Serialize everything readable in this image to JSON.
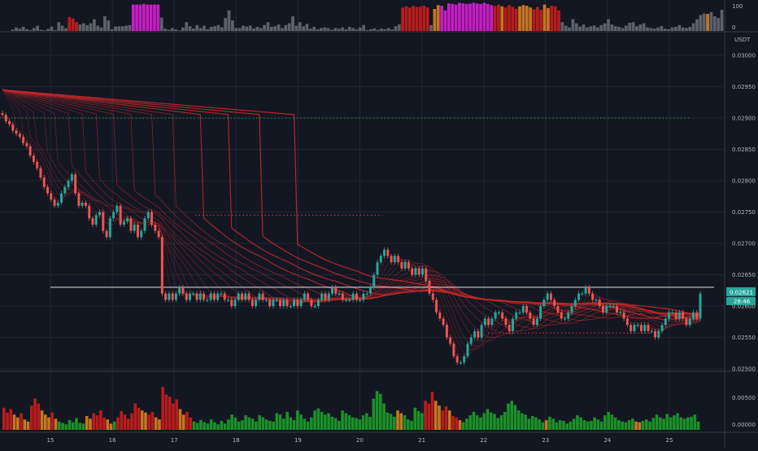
{
  "chart_data": [
    {
      "type": "bar",
      "ylim": [
        0,
        100
      ],
      "y_tick_labels": [
        "100",
        "0"
      ],
      "colors": {
        "grey": "#5d606b",
        "red": "#b71c1c",
        "magenta": "#c41ec4",
        "orange": "#c7751f"
      },
      "values": [
        0,
        0,
        5,
        12,
        8,
        14,
        6,
        3,
        10,
        18,
        4,
        2,
        7,
        15,
        3,
        30,
        18,
        9,
        48,
        42,
        30,
        22,
        26,
        20,
        26,
        40,
        18,
        12,
        50,
        36,
        6,
        15,
        16,
        16,
        18,
        20,
        90,
        90,
        90,
        92,
        90,
        90,
        90,
        90,
        45,
        8,
        4,
        10,
        5,
        2,
        12,
        30,
        16,
        8,
        20,
        10,
        18,
        6,
        14,
        16,
        20,
        12,
        44,
        70,
        36,
        10,
        10,
        18,
        15,
        18,
        8,
        14,
        10,
        20,
        30,
        14,
        16,
        22,
        10,
        20,
        26,
        50,
        18,
        30,
        16,
        24,
        8,
        14,
        6,
        10,
        12,
        10,
        4,
        10,
        8,
        12,
        6,
        14,
        10,
        6,
        12,
        20,
        3,
        6,
        9,
        4,
        8,
        6,
        10,
        5,
        16,
        22,
        80,
        84,
        80,
        85,
        82,
        83,
        86,
        80,
        20,
        75,
        88,
        86,
        70,
        94,
        92,
        90,
        96,
        94,
        92,
        93,
        96,
        94,
        92,
        96,
        92,
        88,
        85,
        90,
        84,
        80,
        88,
        82,
        76,
        84,
        88,
        86,
        80,
        74,
        82,
        72,
        90,
        78,
        86,
        84,
        70,
        30,
        18,
        12,
        40,
        26,
        15,
        22,
        12,
        16,
        18,
        12,
        20,
        26,
        40,
        22,
        16,
        14,
        10,
        18,
        28,
        30,
        16,
        22,
        26,
        12,
        10,
        8,
        12,
        16,
        8,
        6,
        12,
        14,
        20,
        12,
        10,
        14,
        26,
        40,
        54,
        60,
        58,
        64,
        50,
        44,
        72
      ],
      "bar_colors": [
        "g",
        "g",
        "g",
        "g",
        "g",
        "g",
        "g",
        "g",
        "g",
        "g",
        "g",
        "g",
        "g",
        "g",
        "g",
        "g",
        "g",
        "g",
        "r",
        "r",
        "r",
        "g",
        "g",
        "g",
        "g",
        "g",
        "g",
        "g",
        "g",
        "g",
        "g",
        "g",
        "g",
        "g",
        "g",
        "g",
        "m",
        "m",
        "m",
        "m",
        "m",
        "m",
        "m",
        "m",
        "g",
        "g",
        "g",
        "g",
        "g",
        "g",
        "g",
        "g",
        "g",
        "g",
        "g",
        "g",
        "g",
        "g",
        "g",
        "g",
        "g",
        "g",
        "g",
        "g",
        "g",
        "g",
        "g",
        "g",
        "g",
        "g",
        "g",
        "g",
        "g",
        "g",
        "g",
        "g",
        "g",
        "g",
        "g",
        "g",
        "g",
        "g",
        "g",
        "g",
        "g",
        "g",
        "g",
        "g",
        "g",
        "g",
        "g",
        "g",
        "g",
        "g",
        "g",
        "g",
        "g",
        "g",
        "g",
        "g",
        "g",
        "g",
        "g",
        "g",
        "g",
        "g",
        "g",
        "g",
        "g",
        "g",
        "g",
        "g",
        "r",
        "r",
        "r",
        "r",
        "r",
        "r",
        "r",
        "r",
        "g",
        "o",
        "o",
        "m",
        "m",
        "m",
        "m",
        "m",
        "m",
        "m",
        "m",
        "m",
        "m",
        "m",
        "m",
        "m",
        "m",
        "m",
        "r",
        "r",
        "o",
        "r",
        "r",
        "r",
        "r",
        "o",
        "o",
        "o",
        "o",
        "r",
        "r",
        "r",
        "o",
        "o",
        "r",
        "r",
        "r",
        "g",
        "g",
        "g",
        "g",
        "g",
        "g",
        "g",
        "g",
        "g",
        "g",
        "g",
        "g",
        "g",
        "g",
        "g",
        "g",
        "g",
        "g",
        "g",
        "g",
        "g",
        "g",
        "g",
        "g",
        "g",
        "g",
        "g",
        "g",
        "g",
        "g",
        "g",
        "g",
        "g",
        "g",
        "g",
        "g",
        "g",
        "g",
        "g",
        "g",
        "g",
        "o"
      ]
    },
    {
      "type": "candlestick",
      "unit": "USDT",
      "x_tick_labels": [
        "15",
        "16",
        "17",
        "18",
        "19",
        "20",
        "21",
        "22",
        "23",
        "24",
        "25"
      ],
      "y_tick_labels": [
        "0.03000",
        "0.02950",
        "0.02900",
        "0.02850",
        "0.02800",
        "0.02750",
        "0.02700",
        "0.02650",
        "0.02600",
        "0.02550",
        "0.02500"
      ],
      "last_price_label": "0.02621",
      "countdown_label": "28:46",
      "horizontal_level": 0.0263,
      "dotted_level_green": 0.029,
      "dotted_level_red": 0.02745,
      "dotted_level_red_2": 0.02557,
      "close": [
        0.02905,
        0.02895,
        0.0289,
        0.0288,
        0.02875,
        0.0287,
        0.0286,
        0.02855,
        0.0284,
        0.0283,
        0.0282,
        0.02805,
        0.0279,
        0.0278,
        0.0277,
        0.0276,
        0.02765,
        0.0278,
        0.0279,
        0.028,
        0.0281,
        0.0278,
        0.0276,
        0.02765,
        0.0276,
        0.0274,
        0.0273,
        0.02745,
        0.0275,
        0.0272,
        0.0271,
        0.0274,
        0.0275,
        0.0276,
        0.0273,
        0.02735,
        0.0274,
        0.0272,
        0.0273,
        0.0271,
        0.0272,
        0.0274,
        0.0275,
        0.0273,
        0.0272,
        0.0271,
        0.0262,
        0.0261,
        0.0262,
        0.0261,
        0.0262,
        0.0263,
        0.0262,
        0.0261,
        0.0262,
        0.0262,
        0.0261,
        0.0262,
        0.0261,
        0.0261,
        0.0262,
        0.0261,
        0.0262,
        0.0262,
        0.0261,
        0.0261,
        0.026,
        0.0261,
        0.0262,
        0.0261,
        0.0262,
        0.0261,
        0.026,
        0.0261,
        0.0262,
        0.0261,
        0.0261,
        0.026,
        0.0261,
        0.0261,
        0.026,
        0.0261,
        0.026,
        0.026,
        0.0261,
        0.026,
        0.0261,
        0.0262,
        0.0261,
        0.026,
        0.026,
        0.0261,
        0.0262,
        0.0261,
        0.0262,
        0.0263,
        0.0262,
        0.0262,
        0.0261,
        0.0261,
        0.0261,
        0.0262,
        0.0261,
        0.0261,
        0.0262,
        0.0262,
        0.0263,
        0.0265,
        0.0267,
        0.0268,
        0.0269,
        0.0268,
        0.0267,
        0.0268,
        0.0267,
        0.0266,
        0.0267,
        0.0266,
        0.0265,
        0.0266,
        0.0265,
        0.0266,
        0.0264,
        0.0262,
        0.0261,
        0.0259,
        0.0258,
        0.0257,
        0.0255,
        0.0254,
        0.0252,
        0.0251,
        0.0251,
        0.0252,
        0.0254,
        0.0255,
        0.0256,
        0.0255,
        0.0257,
        0.0258,
        0.0257,
        0.0258,
        0.0259,
        0.0259,
        0.0258,
        0.0257,
        0.0256,
        0.0258,
        0.0259,
        0.0259,
        0.026,
        0.0259,
        0.0258,
        0.0257,
        0.0258,
        0.026,
        0.0261,
        0.0262,
        0.0261,
        0.026,
        0.0259,
        0.0258,
        0.0258,
        0.0259,
        0.026,
        0.0261,
        0.0262,
        0.0262,
        0.0263,
        0.0262,
        0.0261,
        0.0261,
        0.026,
        0.0259,
        0.026,
        0.026,
        0.026,
        0.0259,
        0.0259,
        0.0258,
        0.0257,
        0.0256,
        0.0257,
        0.0257,
        0.0256,
        0.0257,
        0.0256,
        0.0256,
        0.0255,
        0.0256,
        0.0257,
        0.0258,
        0.0259,
        0.0259,
        0.0258,
        0.0259,
        0.0258,
        0.0257,
        0.0258,
        0.0259,
        0.0258,
        0.0262
      ]
    },
    {
      "type": "bar",
      "y_tick_labels": [
        "0.00500",
        "0.00000"
      ],
      "ylim": [
        0,
        0.008
      ],
      "values": [
        0.0032,
        0.0025,
        0.003,
        0.0022,
        0.0018,
        0.0024,
        0.0015,
        0.0012,
        0.0035,
        0.0045,
        0.0038,
        0.0028,
        0.0022,
        0.0018,
        0.0025,
        0.0016,
        0.0012,
        0.001,
        0.0008,
        0.0014,
        0.0011,
        0.0017,
        0.001,
        0.0009,
        0.002,
        0.0016,
        0.0024,
        0.0021,
        0.0028,
        0.0018,
        0.0015,
        0.0009,
        0.0012,
        0.0018,
        0.0027,
        0.0022,
        0.0016,
        0.0024,
        0.0038,
        0.0032,
        0.0028,
        0.0025,
        0.0022,
        0.0026,
        0.0018,
        0.0015,
        0.0062,
        0.0051,
        0.0048,
        0.0038,
        0.0044,
        0.003,
        0.0022,
        0.0026,
        0.0018,
        0.0012,
        0.001,
        0.0014,
        0.0011,
        0.0009,
        0.0015,
        0.0011,
        0.0008,
        0.0013,
        0.0009,
        0.0015,
        0.0022,
        0.0018,
        0.0012,
        0.0014,
        0.0021,
        0.0018,
        0.0016,
        0.0012,
        0.0021,
        0.0018,
        0.0015,
        0.0013,
        0.0012,
        0.0024,
        0.0022,
        0.0016,
        0.0026,
        0.0018,
        0.0014,
        0.0028,
        0.0022,
        0.0016,
        0.0012,
        0.0018,
        0.0028,
        0.0031,
        0.0026,
        0.0022,
        0.0024,
        0.0019,
        0.0017,
        0.0013,
        0.0028,
        0.0024,
        0.0021,
        0.0018,
        0.0017,
        0.0015,
        0.0021,
        0.0024,
        0.0019,
        0.0045,
        0.0056,
        0.0052,
        0.0038,
        0.0025,
        0.0023,
        0.0019,
        0.0028,
        0.0024,
        0.0021,
        0.0015,
        0.0013,
        0.0032,
        0.0027,
        0.0024,
        0.0042,
        0.0038,
        0.0055,
        0.0042,
        0.0035,
        0.0028,
        0.0034,
        0.0028,
        0.002,
        0.0018,
        0.0014,
        0.0011,
        0.0016,
        0.0021,
        0.0026,
        0.0021,
        0.0018,
        0.0024,
        0.003,
        0.0025,
        0.0023,
        0.0017,
        0.0021,
        0.0026,
        0.0038,
        0.0042,
        0.0036,
        0.0028,
        0.0024,
        0.0022,
        0.0016,
        0.002,
        0.0018,
        0.0015,
        0.0011,
        0.0014,
        0.0019,
        0.0016,
        0.0011,
        0.0014,
        0.0013,
        0.0009,
        0.0012,
        0.0016,
        0.0021,
        0.0018,
        0.0014,
        0.0012,
        0.0013,
        0.0018,
        0.0015,
        0.0012,
        0.0021,
        0.0026,
        0.0022,
        0.0018,
        0.0014,
        0.0012,
        0.0011,
        0.0014,
        0.0016,
        0.0012,
        0.0011,
        0.0013,
        0.0015,
        0.0012,
        0.0017,
        0.0022,
        0.0018,
        0.0016,
        0.0023,
        0.0018,
        0.0021,
        0.0024,
        0.0018,
        0.0016,
        0.0018,
        0.0019,
        0.0022,
        0.0012
      ],
      "bar_colors": [
        "r",
        "r",
        "r",
        "o",
        "o",
        "r",
        "o",
        "o",
        "r",
        "r",
        "r",
        "o",
        "o",
        "o",
        "r",
        "o",
        "g",
        "g",
        "g",
        "g",
        "g",
        "g",
        "g",
        "g",
        "o",
        "o",
        "r",
        "r",
        "r",
        "r",
        "o",
        "o",
        "g",
        "r",
        "r",
        "r",
        "r",
        "r",
        "r",
        "r",
        "o",
        "o",
        "r",
        "r",
        "o",
        "o",
        "r",
        "r",
        "r",
        "r",
        "r",
        "o",
        "o",
        "r",
        "r",
        "g",
        "g",
        "g",
        "g",
        "g",
        "g",
        "g",
        "g",
        "g",
        "g",
        "g",
        "g",
        "g",
        "g",
        "g",
        "g",
        "g",
        "g",
        "g",
        "g",
        "g",
        "g",
        "g",
        "g",
        "g",
        "g",
        "g",
        "g",
        "g",
        "g",
        "g",
        "g",
        "g",
        "g",
        "g",
        "g",
        "g",
        "g",
        "g",
        "g",
        "g",
        "g",
        "g",
        "g",
        "g",
        "g",
        "g",
        "g",
        "g",
        "g",
        "g",
        "g",
        "g",
        "g",
        "g",
        "g",
        "g",
        "g",
        "g",
        "o",
        "o",
        "g",
        "g",
        "g",
        "g",
        "g",
        "g",
        "r",
        "r",
        "r",
        "o",
        "o",
        "r",
        "r",
        "o",
        "r",
        "r",
        "o",
        "g",
        "g",
        "g",
        "g",
        "g",
        "g",
        "g",
        "g",
        "g",
        "g",
        "g",
        "g",
        "g",
        "g",
        "g",
        "g",
        "g",
        "g",
        "g",
        "g",
        "g",
        "g",
        "g",
        "g",
        "o",
        "g",
        "g",
        "g",
        "g",
        "g",
        "g",
        "g",
        "g",
        "g",
        "g",
        "g",
        "g",
        "g",
        "g",
        "g",
        "g",
        "g",
        "g",
        "g",
        "g",
        "g",
        "g",
        "g",
        "g",
        "g",
        "o",
        "o",
        "g",
        "g",
        "g",
        "g",
        "g",
        "g",
        "g",
        "g",
        "g",
        "g",
        "g",
        "g",
        "g",
        "g",
        "g",
        "g",
        "g",
        "g",
        "g",
        "g",
        "g",
        "g"
      ]
    }
  ],
  "colors": {
    "background": "#131722",
    "grid": "#222632",
    "candle_up": "#26a69a",
    "candle_down": "#ef5350",
    "ribbon": "#c62828",
    "dotted_green": "#2e7d32",
    "dotted_red": "#c62828",
    "vol_green": "#1b8f2a",
    "vol_red": "#b71c1c",
    "vol_orange": "#c7751f",
    "price_tag": "#26a69a"
  }
}
